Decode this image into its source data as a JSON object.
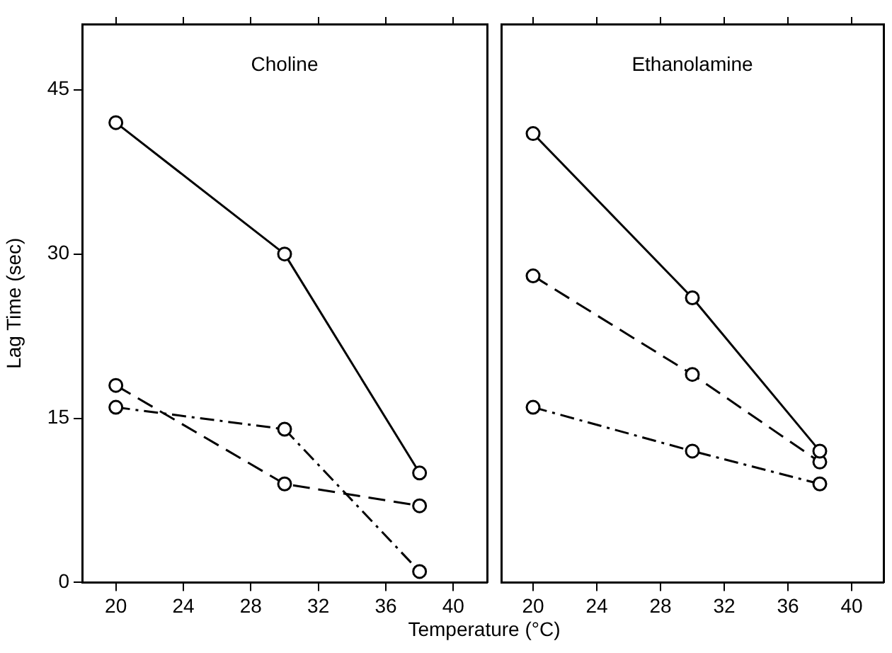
{
  "chart_data": [
    {
      "type": "line",
      "title": "Choline",
      "xlabel": "Temperature (°C)",
      "ylabel": "Lag Time (sec)",
      "x": [
        20,
        30,
        38
      ],
      "xlim": [
        18,
        42
      ],
      "xticks": [
        20,
        24,
        28,
        32,
        36,
        40
      ],
      "ylim": [
        0,
        51
      ],
      "yticks": [
        0,
        15,
        30,
        45
      ],
      "grid": false,
      "legend": false,
      "marker": "circle",
      "series": [
        {
          "color": "#000000",
          "line_style": "solid",
          "values": [
            42,
            30,
            10
          ]
        },
        {
          "color": "#000000",
          "line_style": "dashed",
          "values": [
            18,
            9,
            7
          ]
        },
        {
          "color": "#000000",
          "line_style": "dashdot",
          "values": [
            16,
            14,
            1
          ]
        }
      ]
    },
    {
      "type": "line",
      "title": "Ethanolamine",
      "x": [
        20,
        30,
        38
      ],
      "xlim": [
        18,
        42
      ],
      "xticks": [
        20,
        24,
        28,
        32,
        36,
        40
      ],
      "ylim": [
        0,
        51
      ],
      "yticks": [
        0,
        15,
        30,
        45
      ],
      "grid": false,
      "legend": false,
      "marker": "circle",
      "tick_labels": "x",
      "series": [
        {
          "color": "#000000",
          "line_style": "solid",
          "values": [
            41,
            26,
            12
          ]
        },
        {
          "color": "#000000",
          "line_style": "dashed",
          "values": [
            28,
            19,
            11
          ]
        },
        {
          "color": "#000000",
          "line_style": "dashdot",
          "values": [
            16,
            12,
            9
          ]
        }
      ]
    }
  ]
}
